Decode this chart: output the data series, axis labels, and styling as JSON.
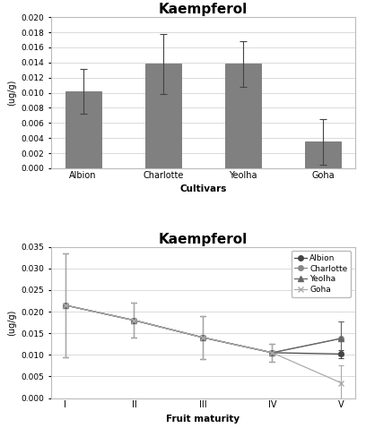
{
  "title": "Kaempferol",
  "bar_categories": [
    "Albion",
    "Charlotte",
    "Yeolha",
    "Goha"
  ],
  "bar_values": [
    0.0102,
    0.0138,
    0.0138,
    0.0035
  ],
  "bar_errors": [
    0.003,
    0.004,
    0.003,
    0.003
  ],
  "bar_color": "#808080",
  "bar_ylabel": "(ug/g)",
  "bar_xlabel": "Cultivars",
  "bar_ylim": [
    0,
    0.02
  ],
  "bar_yticks": [
    0,
    0.002,
    0.004,
    0.006,
    0.008,
    0.01,
    0.012,
    0.014,
    0.016,
    0.018,
    0.02
  ],
  "line_title": "Kaempferol",
  "line_xlabel": "Fruit maturity",
  "line_ylabel": "(ug/g)",
  "line_ylim": [
    0,
    0.035
  ],
  "line_yticks": [
    0,
    0.005,
    0.01,
    0.015,
    0.02,
    0.025,
    0.03,
    0.035
  ],
  "line_xticks": [
    "I",
    "II",
    "III",
    "IV",
    "V"
  ],
  "line_series": {
    "Albion": {
      "values": [
        0.0215,
        0.018,
        0.014,
        0.0105,
        0.0102
      ],
      "errors": [
        0.012,
        0.004,
        0.005,
        0.002,
        0.001
      ],
      "marker": "o",
      "color": "#444444"
    },
    "Charlotte": {
      "values": [
        0.0215,
        0.018,
        0.014,
        0.0105,
        0.0138
      ],
      "errors": [
        0.012,
        0.004,
        0.005,
        0.002,
        0.004
      ],
      "marker": "o",
      "color": "#888888"
    },
    "Yeolha": {
      "values": [
        0.0215,
        0.018,
        0.014,
        0.0105,
        0.0138
      ],
      "errors": [
        0.012,
        0.004,
        0.005,
        0.002,
        0.004
      ],
      "marker": "^",
      "color": "#666666"
    },
    "Goha": {
      "values": [
        0.0215,
        0.018,
        0.014,
        0.0105,
        0.0035
      ],
      "errors": [
        0.012,
        0.004,
        0.005,
        0.002,
        0.004
      ],
      "marker": "x",
      "color": "#aaaaaa"
    }
  },
  "background_color": "#ffffff",
  "border_color": "#bbbbbb"
}
